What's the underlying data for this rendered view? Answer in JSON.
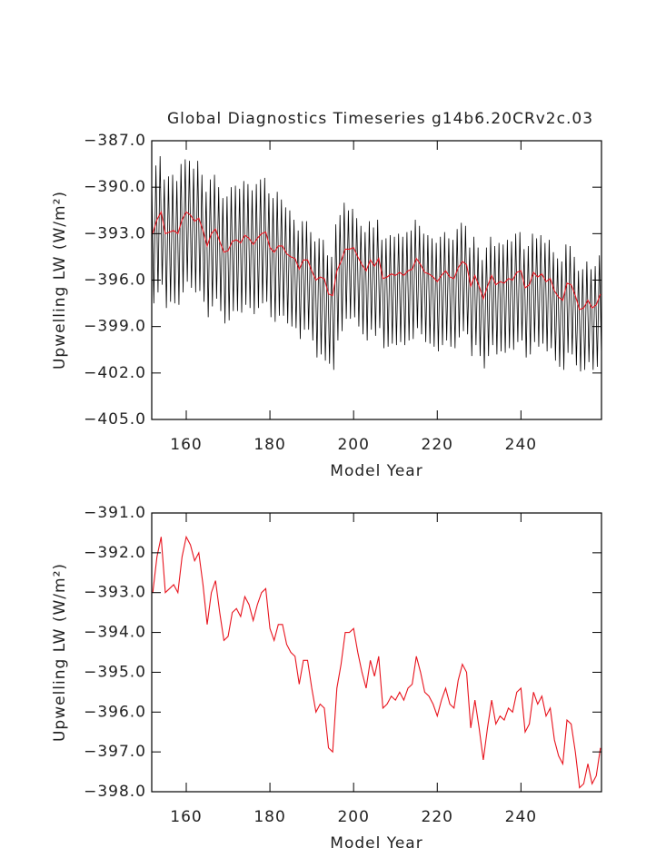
{
  "chart_data": [
    {
      "type": "line",
      "title": "Global Diagnostics Timeseries g14b6.20CRv2c.03",
      "xlabel": "Model Year",
      "ylabel": "Upwelling LW (W/m²)",
      "xlim": [
        151.75,
        259.25
      ],
      "xticks": [
        160,
        180,
        200,
        220,
        240
      ],
      "ylim": [
        -405,
        -387
      ],
      "yticks": [
        {
          "value": -405,
          "label": "−405.0"
        },
        {
          "value": -402,
          "label": "−402.0"
        },
        {
          "value": -399,
          "label": "−399.0"
        },
        {
          "value": -396,
          "label": "−396.0"
        },
        {
          "value": -393,
          "label": "−393.0"
        },
        {
          "value": -390,
          "label": "−390.0"
        },
        {
          "value": -387,
          "label": "−387.0"
        }
      ],
      "series": [
        {
          "color": "#000000",
          "x": [
            151.75,
            152.25,
            152.75,
            153.25,
            153.75,
            154.25,
            154.75,
            155.25,
            155.75,
            156.25,
            156.75,
            157.25,
            157.75,
            158.25,
            158.75,
            159.25,
            159.75,
            160.25,
            160.75,
            161.25,
            161.75,
            162.25,
            162.75,
            163.25,
            163.75,
            164.25,
            164.75,
            165.25,
            165.75,
            166.25,
            166.75,
            167.25,
            167.75,
            168.25,
            168.75,
            169.25,
            169.75,
            170.25,
            170.75,
            171.25,
            171.75,
            172.25,
            172.75,
            173.25,
            173.75,
            174.25,
            174.75,
            175.25,
            175.75,
            176.25,
            176.75,
            177.25,
            177.75,
            178.25,
            178.75,
            179.25,
            179.75,
            180.25,
            180.75,
            181.25,
            181.75,
            182.25,
            182.75,
            183.25,
            183.75,
            184.25,
            184.75,
            185.25,
            185.75,
            186.25,
            186.75,
            187.25,
            187.75,
            188.25,
            188.75,
            189.25,
            189.75,
            190.25,
            190.75,
            191.25,
            191.75,
            192.25,
            192.75,
            193.25,
            193.75,
            194.25,
            194.75,
            195.25,
            195.75,
            196.25,
            196.75,
            197.25,
            197.75,
            198.25,
            198.75,
            199.25,
            199.75,
            200.25,
            200.75,
            201.25,
            201.75,
            202.25,
            202.75,
            203.25,
            203.75,
            204.25,
            204.75,
            205.25,
            205.75,
            206.25,
            206.75,
            207.25,
            207.75,
            208.25,
            208.75,
            209.25,
            209.75,
            210.25,
            210.75,
            211.25,
            211.75,
            212.25,
            212.75,
            213.25,
            213.75,
            214.25,
            214.75,
            215.25,
            215.75,
            216.25,
            216.75,
            217.25,
            217.75,
            218.25,
            218.75,
            219.25,
            219.75,
            220.25,
            220.75,
            221.25,
            221.75,
            222.25,
            222.75,
            223.25,
            223.75,
            224.25,
            224.75,
            225.25,
            225.75,
            226.25,
            226.75,
            227.25,
            227.75,
            228.25,
            228.75,
            229.25,
            229.75,
            230.25,
            230.75,
            231.25,
            231.75,
            232.25,
            232.75,
            233.25,
            233.75,
            234.25,
            234.75,
            235.25,
            235.75,
            236.25,
            236.75,
            237.25,
            237.75,
            238.25,
            238.75,
            239.25,
            239.75,
            240.25,
            240.75,
            241.25,
            241.75,
            242.25,
            242.75,
            243.25,
            243.75,
            244.25,
            244.75,
            245.25,
            245.75,
            246.25,
            246.75,
            247.25,
            247.75,
            248.25,
            248.75,
            249.25,
            249.75,
            250.25,
            250.75,
            251.25,
            251.75,
            252.25,
            252.75,
            253.25,
            253.75,
            254.25,
            254.75,
            255.25,
            255.75,
            256.25,
            256.75,
            257.25,
            257.75,
            258.25,
            258.75,
            259.25
          ],
          "values": [
            -389.5,
            -397.5,
            -388.6,
            -396.8,
            -388.0,
            -396.3,
            -389.5,
            -397.8,
            -389.3,
            -397.4,
            -389.2,
            -397.5,
            -389.6,
            -397.6,
            -388.5,
            -396.8,
            -388.2,
            -396.1,
            -388.3,
            -396.5,
            -388.8,
            -396.8,
            -388.3,
            -396.7,
            -389.2,
            -397.4,
            -390.3,
            -398.4,
            -389.5,
            -397.7,
            -389.2,
            -397.2,
            -390.0,
            -398.0,
            -390.7,
            -398.8,
            -390.6,
            -398.6,
            -390.0,
            -398.0,
            -389.9,
            -398.0,
            -390.1,
            -398.1,
            -389.6,
            -397.6,
            -389.8,
            -397.8,
            -390.2,
            -398.2,
            -389.8,
            -397.8,
            -389.5,
            -397.5,
            -389.4,
            -397.4,
            -390.4,
            -398.4,
            -390.7,
            -398.7,
            -390.3,
            -398.3,
            -390.8,
            -398.3,
            -391.3,
            -398.8,
            -391.5,
            -399.0,
            -392.1,
            -399.1,
            -392.8,
            -399.8,
            -392.2,
            -399.2,
            -392.2,
            -399.2,
            -392.9,
            -399.9,
            -393.5,
            -401.0,
            -393.3,
            -400.8,
            -393.4,
            -401.2,
            -394.4,
            -401.4,
            -394.5,
            -401.8,
            -392.4,
            -399.9,
            -391.8,
            -399.3,
            -391.0,
            -398.5,
            -391.5,
            -398.5,
            -391.4,
            -398.4,
            -392.0,
            -399.0,
            -392.5,
            -399.5,
            -392.9,
            -399.9,
            -392.2,
            -399.2,
            -392.6,
            -399.6,
            -392.1,
            -399.1,
            -393.4,
            -400.4,
            -393.3,
            -400.3,
            -393.1,
            -400.1,
            -393.2,
            -400.2,
            -393.0,
            -400.0,
            -393.2,
            -400.2,
            -392.9,
            -399.9,
            -392.8,
            -399.8,
            -392.1,
            -399.1,
            -392.5,
            -399.5,
            -393.0,
            -400.0,
            -393.1,
            -400.1,
            -393.3,
            -400.3,
            -393.6,
            -400.6,
            -393.2,
            -400.2,
            -392.9,
            -399.9,
            -393.3,
            -400.3,
            -393.4,
            -400.4,
            -392.7,
            -399.7,
            -392.3,
            -399.3,
            -392.5,
            -399.5,
            -393.9,
            -400.9,
            -393.2,
            -400.2,
            -393.9,
            -400.9,
            -394.7,
            -401.7,
            -393.9,
            -400.9,
            -393.2,
            -400.2,
            -393.8,
            -400.8,
            -393.6,
            -400.6,
            -393.7,
            -400.7,
            -393.4,
            -400.4,
            -393.5,
            -400.5,
            -393.0,
            -400.0,
            -392.9,
            -399.9,
            -394.0,
            -401.0,
            -393.8,
            -400.8,
            -393.0,
            -400.0,
            -393.3,
            -400.3,
            -393.1,
            -400.1,
            -393.6,
            -400.6,
            -393.4,
            -400.4,
            -394.2,
            -401.2,
            -394.6,
            -401.6,
            -394.8,
            -401.8,
            -393.7,
            -400.7,
            -393.8,
            -400.8,
            -394.5,
            -401.5,
            -395.4,
            -401.9,
            -395.3,
            -401.8,
            -394.8,
            -401.3,
            -395.3,
            -401.8,
            -395.1,
            -401.6,
            -394.4,
            -400.9
          ]
        },
        {
          "color": "#e8141e",
          "x": [
            152,
            153,
            154,
            155,
            156,
            157,
            158,
            159,
            160,
            161,
            162,
            163,
            164,
            165,
            166,
            167,
            168,
            169,
            170,
            171,
            172,
            173,
            174,
            175,
            176,
            177,
            178,
            179,
            180,
            181,
            182,
            183,
            184,
            185,
            186,
            187,
            188,
            189,
            190,
            191,
            192,
            193,
            194,
            195,
            196,
            197,
            198,
            199,
            200,
            201,
            202,
            203,
            204,
            205,
            206,
            207,
            208,
            209,
            210,
            211,
            212,
            213,
            214,
            215,
            216,
            217,
            218,
            219,
            220,
            221,
            222,
            223,
            224,
            225,
            226,
            227,
            228,
            229,
            230,
            231,
            232,
            233,
            234,
            235,
            236,
            237,
            238,
            239,
            240,
            241,
            242,
            243,
            244,
            245,
            246,
            247,
            248,
            249,
            250,
            251,
            252,
            253,
            254,
            255,
            256,
            257,
            258,
            259
          ],
          "values": [
            -393.0,
            -392.1,
            -391.6,
            -393.0,
            -392.9,
            -392.8,
            -393.0,
            -392.1,
            -391.6,
            -391.8,
            -392.2,
            -392.0,
            -392.8,
            -393.8,
            -393.0,
            -392.7,
            -393.5,
            -394.2,
            -394.1,
            -393.5,
            -393.4,
            -393.6,
            -393.1,
            -393.3,
            -393.7,
            -393.3,
            -393.0,
            -392.9,
            -393.9,
            -394.2,
            -393.8,
            -393.8,
            -394.3,
            -394.5,
            -394.6,
            -395.3,
            -394.7,
            -394.7,
            -395.4,
            -396.0,
            -395.8,
            -395.9,
            -396.9,
            -397.0,
            -395.4,
            -394.8,
            -394.0,
            -394.0,
            -393.9,
            -394.5,
            -395.0,
            -395.4,
            -394.7,
            -395.1,
            -394.6,
            -395.9,
            -395.8,
            -395.6,
            -395.7,
            -395.5,
            -395.7,
            -395.4,
            -395.3,
            -394.6,
            -395.0,
            -395.5,
            -395.6,
            -395.8,
            -396.1,
            -395.7,
            -395.4,
            -395.8,
            -395.9,
            -395.2,
            -394.8,
            -395.0,
            -396.4,
            -395.7,
            -396.4,
            -397.2,
            -396.4,
            -395.7,
            -396.3,
            -396.1,
            -396.2,
            -395.9,
            -396.0,
            -395.5,
            -395.4,
            -396.5,
            -396.3,
            -395.5,
            -395.8,
            -395.6,
            -396.1,
            -395.9,
            -396.7,
            -397.1,
            -397.3,
            -396.2,
            -396.3,
            -397.0,
            -397.9,
            -397.8,
            -397.3,
            -397.8,
            -397.6,
            -396.9
          ]
        }
      ]
    },
    {
      "type": "line",
      "xlabel": "Model Year",
      "ylabel": "Upwelling LW (W/m²)",
      "xlim": [
        151.75,
        259.25
      ],
      "xticks": [
        160,
        180,
        200,
        220,
        240
      ],
      "ylim": [
        -398,
        -391
      ],
      "yticks": [
        {
          "value": -398,
          "label": "−398.0"
        },
        {
          "value": -397,
          "label": "−397.0"
        },
        {
          "value": -396,
          "label": "−396.0"
        },
        {
          "value": -395,
          "label": "−395.0"
        },
        {
          "value": -394,
          "label": "−394.0"
        },
        {
          "value": -393,
          "label": "−393.0"
        },
        {
          "value": -392,
          "label": "−392.0"
        },
        {
          "value": -391,
          "label": "−391.0"
        }
      ],
      "series": [
        {
          "color": "#e8141e",
          "x": [
            152,
            153,
            154,
            155,
            156,
            157,
            158,
            159,
            160,
            161,
            162,
            163,
            164,
            165,
            166,
            167,
            168,
            169,
            170,
            171,
            172,
            173,
            174,
            175,
            176,
            177,
            178,
            179,
            180,
            181,
            182,
            183,
            184,
            185,
            186,
            187,
            188,
            189,
            190,
            191,
            192,
            193,
            194,
            195,
            196,
            197,
            198,
            199,
            200,
            201,
            202,
            203,
            204,
            205,
            206,
            207,
            208,
            209,
            210,
            211,
            212,
            213,
            214,
            215,
            216,
            217,
            218,
            219,
            220,
            221,
            222,
            223,
            224,
            225,
            226,
            227,
            228,
            229,
            230,
            231,
            232,
            233,
            234,
            235,
            236,
            237,
            238,
            239,
            240,
            241,
            242,
            243,
            244,
            245,
            246,
            247,
            248,
            249,
            250,
            251,
            252,
            253,
            254,
            255,
            256,
            257,
            258,
            259
          ],
          "values": [
            -393.0,
            -392.1,
            -391.6,
            -393.0,
            -392.9,
            -392.8,
            -393.0,
            -392.1,
            -391.6,
            -391.8,
            -392.2,
            -392.0,
            -392.8,
            -393.8,
            -393.0,
            -392.7,
            -393.5,
            -394.2,
            -394.1,
            -393.5,
            -393.4,
            -393.6,
            -393.1,
            -393.3,
            -393.7,
            -393.3,
            -393.0,
            -392.9,
            -393.9,
            -394.2,
            -393.8,
            -393.8,
            -394.3,
            -394.5,
            -394.6,
            -395.3,
            -394.7,
            -394.7,
            -395.4,
            -396.0,
            -395.8,
            -395.9,
            -396.9,
            -397.0,
            -395.4,
            -394.8,
            -394.0,
            -394.0,
            -393.9,
            -394.5,
            -395.0,
            -395.4,
            -394.7,
            -395.1,
            -394.6,
            -395.9,
            -395.8,
            -395.6,
            -395.7,
            -395.5,
            -395.7,
            -395.4,
            -395.3,
            -394.6,
            -395.0,
            -395.5,
            -395.6,
            -395.8,
            -396.1,
            -395.7,
            -395.4,
            -395.8,
            -395.9,
            -395.2,
            -394.8,
            -395.0,
            -396.4,
            -395.7,
            -396.4,
            -397.2,
            -396.4,
            -395.7,
            -396.3,
            -396.1,
            -396.2,
            -395.9,
            -396.0,
            -395.5,
            -395.4,
            -396.5,
            -396.3,
            -395.5,
            -395.8,
            -395.6,
            -396.1,
            -395.9,
            -396.7,
            -397.1,
            -397.3,
            -396.2,
            -396.3,
            -397.0,
            -397.9,
            -397.8,
            -397.3,
            -397.8,
            -397.6,
            -396.9
          ]
        }
      ]
    }
  ]
}
